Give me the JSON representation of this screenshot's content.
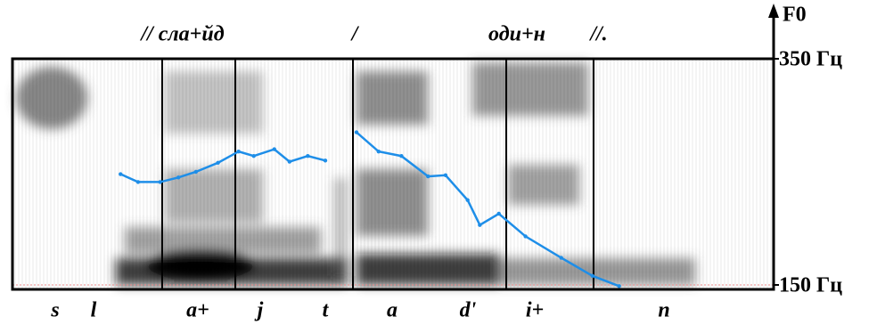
{
  "chart_data": {
    "type": "line",
    "y_label": "F0",
    "annotations": [
      "// сла+йд",
      "/",
      "оди+н",
      "//."
    ],
    "segments": [
      "s",
      "l",
      "a+",
      "j",
      "t",
      "a",
      "d'",
      "i+",
      "n"
    ],
    "xlim": [
      0,
      100
    ],
    "ylim": [
      150,
      350
    ],
    "yticks": [
      {
        "value": 150,
        "label": "150 Гц"
      },
      {
        "value": 350,
        "label": "350 Гц"
      }
    ],
    "series": [
      {
        "name": "F0",
        "color": "#1e8ee8",
        "x": [
          14.2,
          16.5,
          19.4,
          21.8,
          24.1,
          27.0,
          29.7,
          31.7,
          34.4,
          36.4,
          38.8,
          41.1,
          null,
          45.2,
          48.1,
          51.1,
          54.6,
          56.9,
          59.8,
          61.4,
          63.9,
          67.4,
          72.1,
          76.2,
          79.7
        ],
        "values": [
          248,
          241,
          241,
          245,
          250,
          258,
          268,
          264,
          270,
          259,
          264,
          260,
          null,
          285,
          268,
          264,
          246,
          247,
          225,
          203,
          213,
          193,
          174,
          158,
          149
        ]
      }
    ]
  }
}
